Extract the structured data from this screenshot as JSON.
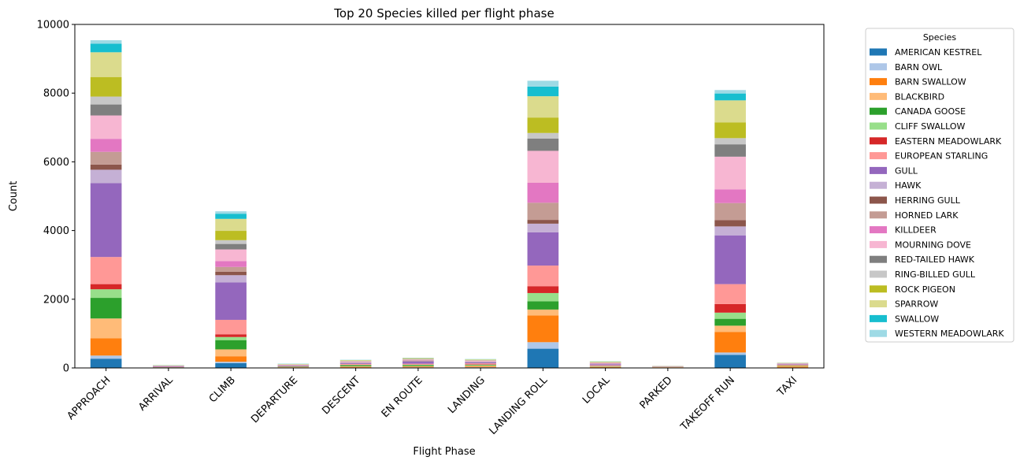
{
  "chart_data": {
    "type": "bar",
    "stacked": true,
    "title": "Top 20 Species killed per flight phase",
    "xlabel": "Flight Phase",
    "ylabel": "Count",
    "ylim": [
      0,
      10000
    ],
    "yticks": [
      0,
      2000,
      4000,
      6000,
      8000,
      10000
    ],
    "ytick_labels": [
      "0",
      "2000",
      "4000",
      "6000",
      "8000",
      "10000"
    ],
    "legend_title": "Species",
    "legend_position": "outside-right",
    "grid": false,
    "categories": [
      "APPROACH",
      "ARRIVAL",
      "CLIMB",
      "DEPARTURE",
      "DESCENT",
      "EN ROUTE",
      "LANDING",
      "LANDING ROLL",
      "LOCAL",
      "PARKED",
      "TAKEOFF RUN",
      "TAXI"
    ],
    "series": [
      {
        "name": "AMERICAN KESTREL",
        "color": "#1f77b4",
        "values": [
          270,
          3,
          140,
          3,
          8,
          10,
          15,
          560,
          8,
          5,
          380,
          10
        ]
      },
      {
        "name": "BARN OWL",
        "color": "#aec7e8",
        "values": [
          90,
          2,
          40,
          2,
          5,
          8,
          5,
          190,
          5,
          2,
          70,
          3
        ]
      },
      {
        "name": "BARN SWALLOW",
        "color": "#ff7f0e",
        "values": [
          500,
          5,
          160,
          8,
          15,
          15,
          20,
          780,
          12,
          8,
          600,
          20
        ]
      },
      {
        "name": "BLACKBIRD",
        "color": "#ffbb78",
        "values": [
          580,
          5,
          200,
          10,
          20,
          20,
          25,
          170,
          15,
          10,
          180,
          25
        ]
      },
      {
        "name": "CANADA GOOSE",
        "color": "#2ca02c",
        "values": [
          600,
          3,
          270,
          10,
          30,
          30,
          20,
          240,
          10,
          3,
          200,
          10
        ]
      },
      {
        "name": "CLIFF SWALLOW",
        "color": "#98df8a",
        "values": [
          250,
          3,
          90,
          5,
          10,
          10,
          10,
          240,
          5,
          2,
          180,
          5
        ]
      },
      {
        "name": "EASTERN MEADOWLARK",
        "color": "#d62728",
        "values": [
          150,
          2,
          80,
          3,
          5,
          5,
          10,
          200,
          5,
          2,
          250,
          5
        ]
      },
      {
        "name": "EUROPEAN STARLING",
        "color": "#ff9896",
        "values": [
          790,
          10,
          420,
          15,
          25,
          25,
          30,
          600,
          20,
          5,
          580,
          20
        ]
      },
      {
        "name": "GULL",
        "color": "#9467bd",
        "values": [
          2150,
          15,
          1090,
          15,
          25,
          60,
          30,
          970,
          25,
          5,
          1420,
          15
        ]
      },
      {
        "name": "HAWK",
        "color": "#c5b0d5",
        "values": [
          390,
          3,
          210,
          5,
          10,
          15,
          10,
          250,
          10,
          2,
          260,
          5
        ]
      },
      {
        "name": "HERRING GULL",
        "color": "#8c564b",
        "values": [
          150,
          2,
          100,
          2,
          5,
          10,
          5,
          110,
          3,
          1,
          180,
          2
        ]
      },
      {
        "name": "HORNED LARK",
        "color": "#c49c94",
        "values": [
          370,
          3,
          140,
          5,
          10,
          15,
          10,
          500,
          10,
          2,
          500,
          5
        ]
      },
      {
        "name": "KILLDEER",
        "color": "#e377c2",
        "values": [
          380,
          3,
          170,
          5,
          10,
          10,
          10,
          580,
          10,
          2,
          400,
          5
        ]
      },
      {
        "name": "MOURNING DOVE",
        "color": "#f7b6d2",
        "values": [
          680,
          5,
          340,
          8,
          15,
          15,
          15,
          930,
          15,
          3,
          950,
          5
        ]
      },
      {
        "name": "RED-TAILED HAWK",
        "color": "#7f7f7f",
        "values": [
          320,
          3,
          160,
          3,
          5,
          10,
          5,
          360,
          5,
          1,
          360,
          3
        ]
      },
      {
        "name": "RING-BILLED GULL",
        "color": "#c7c7c7",
        "values": [
          230,
          2,
          110,
          2,
          5,
          8,
          5,
          160,
          5,
          1,
          180,
          2
        ]
      },
      {
        "name": "ROCK PIGEON",
        "color": "#bcbd22",
        "values": [
          570,
          5,
          270,
          5,
          10,
          10,
          10,
          450,
          10,
          2,
          460,
          5
        ]
      },
      {
        "name": "SPARROW",
        "color": "#dbdb8d",
        "values": [
          720,
          5,
          350,
          10,
          15,
          15,
          15,
          620,
          10,
          3,
          640,
          5
        ]
      },
      {
        "name": "SWALLOW",
        "color": "#17becf",
        "values": [
          250,
          3,
          150,
          5,
          5,
          5,
          5,
          280,
          5,
          1,
          200,
          2
        ]
      },
      {
        "name": "WESTERN MEADOWLARK",
        "color": "#9edae5",
        "values": [
          100,
          1,
          70,
          2,
          2,
          2,
          5,
          170,
          2,
          1,
          100,
          1
        ]
      }
    ]
  }
}
